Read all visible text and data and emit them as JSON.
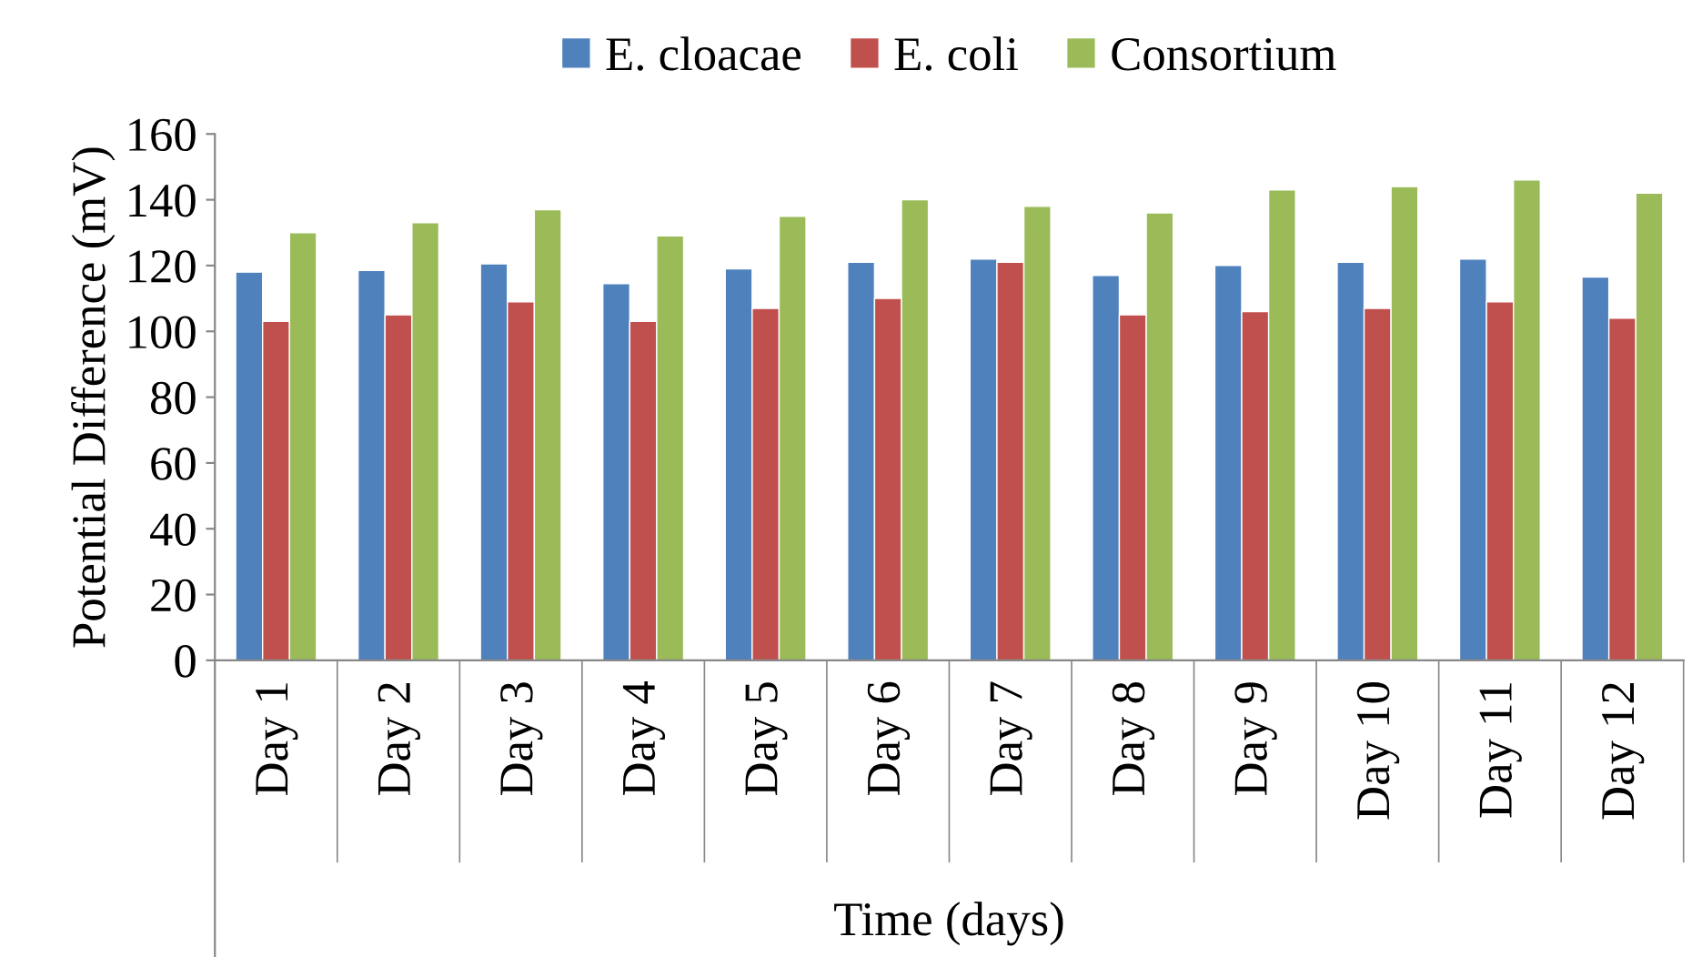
{
  "chart_data": {
    "type": "bar",
    "xlabel": "Time (days)",
    "ylabel": "Potential Difference (mV)",
    "categories": [
      "Day 1",
      "Day 2",
      "Day 3",
      "Day 4",
      "Day 5",
      "Day 6",
      "Day 7",
      "Day 8",
      "Day 9",
      "Day 10",
      "Day 11",
      "Day 12"
    ],
    "series": [
      {
        "name": "E. cloacae",
        "color": "#4f81bd",
        "values": [
          118,
          118.5,
          120.5,
          114.5,
          119,
          121,
          122,
          117,
          120,
          121,
          122,
          116.5
        ]
      },
      {
        "name": "E. coli",
        "color": "#c0504d",
        "values": [
          103,
          105,
          109,
          103,
          107,
          110,
          121,
          105,
          106,
          107,
          109,
          104
        ]
      },
      {
        "name": "Consortium",
        "color": "#9bbb59",
        "values": [
          130,
          133,
          137,
          129,
          135,
          140,
          138,
          136,
          143,
          144,
          146,
          142
        ]
      }
    ],
    "ylim": [
      0,
      160
    ],
    "yticks": [
      0,
      20,
      40,
      60,
      80,
      100,
      120,
      140,
      160
    ],
    "grid": false,
    "legend": "top"
  }
}
